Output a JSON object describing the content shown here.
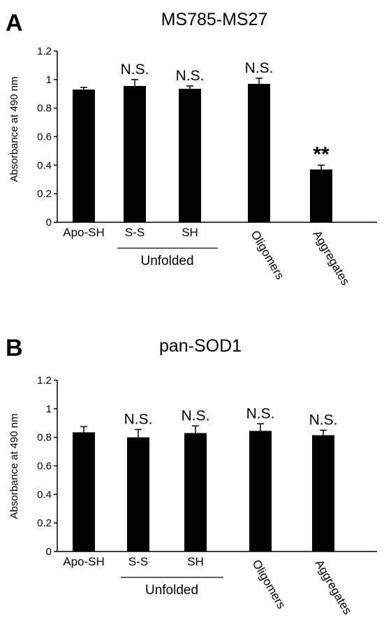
{
  "chart_data": [
    {
      "type": "bar",
      "panel": "A",
      "title": "MS785-MS27",
      "ylabel": "Absorbance at 490 nm",
      "xlabel": "",
      "ylim": [
        0,
        1.2
      ],
      "yticks": [
        "0",
        "0.2",
        "0.4",
        "0.6",
        "0.8",
        "1",
        "1.2"
      ],
      "categories": [
        "Apo-SH",
        "S-S",
        "SH",
        "Oligomers",
        "Aggregates"
      ],
      "values": [
        0.93,
        0.955,
        0.935,
        0.97,
        0.37
      ],
      "errors": [
        0.015,
        0.045,
        0.02,
        0.04,
        0.03
      ],
      "significance": [
        "",
        "N.S.",
        "N.S.",
        "N.S.",
        "**"
      ],
      "group_label": "Unfolded",
      "grid": false,
      "bar_color": "#000000"
    },
    {
      "type": "bar",
      "panel": "B",
      "title": "pan-SOD1",
      "ylabel": "Absorbance at 490 nm",
      "xlabel": "",
      "ylim": [
        0,
        1.2
      ],
      "yticks": [
        "0",
        "0.2",
        "0.4",
        "0.6",
        "0.8",
        "1",
        "1.2"
      ],
      "categories": [
        "Apo-SH",
        "S-S",
        "SH",
        "Oligomers",
        "Aggregates"
      ],
      "values": [
        0.835,
        0.8,
        0.83,
        0.845,
        0.815
      ],
      "errors": [
        0.04,
        0.055,
        0.05,
        0.05,
        0.035
      ],
      "significance": [
        "",
        "N.S.",
        "N.S.",
        "N.S.",
        "N.S."
      ],
      "group_label": "Unfolded",
      "grid": false,
      "bar_color": "#000000"
    }
  ]
}
